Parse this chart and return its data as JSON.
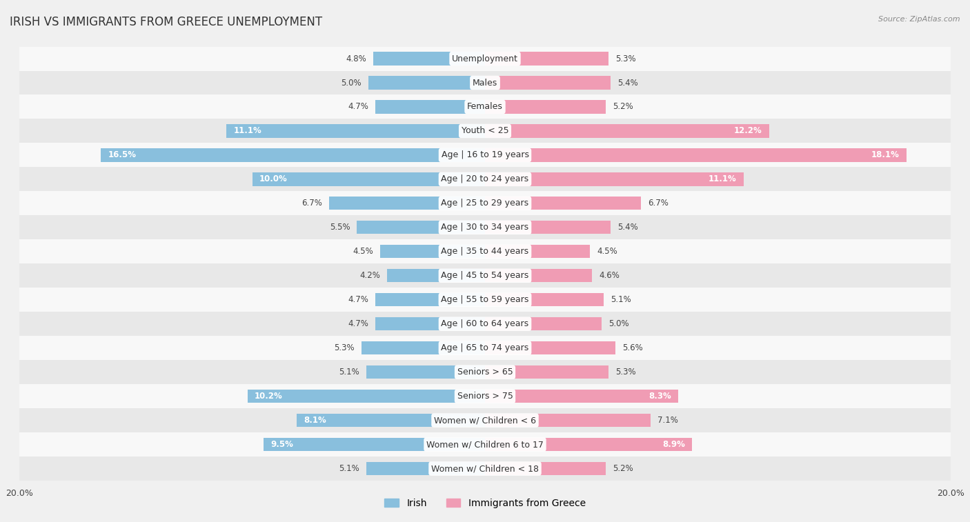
{
  "title": "IRISH VS IMMIGRANTS FROM GREECE UNEMPLOYMENT",
  "source": "Source: ZipAtlas.com",
  "categories": [
    "Unemployment",
    "Males",
    "Females",
    "Youth < 25",
    "Age | 16 to 19 years",
    "Age | 20 to 24 years",
    "Age | 25 to 29 years",
    "Age | 30 to 34 years",
    "Age | 35 to 44 years",
    "Age | 45 to 54 years",
    "Age | 55 to 59 years",
    "Age | 60 to 64 years",
    "Age | 65 to 74 years",
    "Seniors > 65",
    "Seniors > 75",
    "Women w/ Children < 6",
    "Women w/ Children 6 to 17",
    "Women w/ Children < 18"
  ],
  "irish_values": [
    4.8,
    5.0,
    4.7,
    11.1,
    16.5,
    10.0,
    6.7,
    5.5,
    4.5,
    4.2,
    4.7,
    4.7,
    5.3,
    5.1,
    10.2,
    8.1,
    9.5,
    5.1
  ],
  "greece_values": [
    5.3,
    5.4,
    5.2,
    12.2,
    18.1,
    11.1,
    6.7,
    5.4,
    4.5,
    4.6,
    5.1,
    5.0,
    5.6,
    5.3,
    8.3,
    7.1,
    8.9,
    5.2
  ],
  "irish_color": "#89bfdd",
  "greece_color": "#f09cb4",
  "bar_height": 0.55,
  "axis_max": 20.0,
  "background_color": "#f0f0f0",
  "row_colors_even": "#f8f8f8",
  "row_colors_odd": "#e8e8e8",
  "title_fontsize": 12,
  "label_fontsize": 9,
  "value_fontsize": 8.5,
  "legend_fontsize": 10,
  "inside_label_threshold": 8.0
}
